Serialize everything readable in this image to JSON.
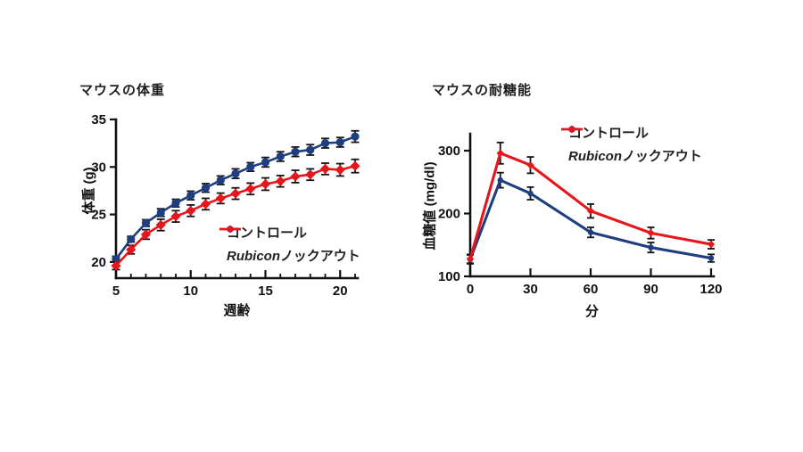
{
  "page": {
    "background": "#ffffff"
  },
  "colors": {
    "control": "#1f3e7f",
    "knockout": "#e5161c",
    "axis": "#111111",
    "error_bar": "#151515",
    "text": "#1f1f1f"
  },
  "legend": {
    "control": "コントロール",
    "knockout_italic": "Rubicon",
    "knockout_rest": "ノックアウト"
  },
  "chart_data": [
    {
      "type": "line",
      "title": "マウスの体重",
      "xlabel": "週齢",
      "ylabel": "体重 (g)",
      "x": [
        5,
        6,
        7,
        8,
        9,
        10,
        11,
        12,
        13,
        14,
        15,
        16,
        17,
        18,
        19,
        20,
        21
      ],
      "xticks": [
        5,
        10,
        15,
        20
      ],
      "xticks_minor": [
        6,
        7,
        8,
        9,
        11,
        12,
        13,
        14,
        16,
        17,
        18,
        19,
        21
      ],
      "yticks": [
        20,
        25,
        30,
        35
      ],
      "xlim": [
        5,
        21
      ],
      "ylim": [
        18.3,
        35
      ],
      "grid": false,
      "legend_position": "inside bottom-right",
      "series": [
        {
          "name": "コントロール",
          "color_key": "control",
          "marker": "circle",
          "values": [
            20.3,
            22.4,
            24.1,
            25.2,
            26.2,
            27.0,
            27.8,
            28.6,
            29.3,
            30.0,
            30.5,
            31.1,
            31.6,
            31.8,
            32.5,
            32.6,
            33.2
          ],
          "errors": [
            0.3,
            0.3,
            0.35,
            0.4,
            0.4,
            0.45,
            0.45,
            0.45,
            0.5,
            0.45,
            0.5,
            0.5,
            0.5,
            0.55,
            0.5,
            0.5,
            0.6
          ]
        },
        {
          "name": "Rubiconノックアウト",
          "color_key": "knockout",
          "marker": "diamond",
          "values": [
            19.6,
            21.3,
            22.9,
            23.9,
            24.8,
            25.4,
            26.1,
            26.7,
            27.2,
            27.7,
            28.2,
            28.5,
            29.0,
            29.2,
            29.8,
            29.7,
            30.1
          ],
          "errors": [
            0.4,
            0.45,
            0.5,
            0.6,
            0.6,
            0.6,
            0.6,
            0.55,
            0.6,
            0.6,
            0.65,
            0.6,
            0.65,
            0.6,
            0.6,
            0.65,
            0.7
          ]
        }
      ]
    },
    {
      "type": "line",
      "title": "マウスの耐糖能",
      "xlabel": "分",
      "ylabel": "血糖値 (mg/dl)",
      "x": [
        0,
        15,
        30,
        60,
        90,
        120
      ],
      "xticks": [
        0,
        30,
        60,
        90,
        120
      ],
      "xticks_minor": [],
      "yticks": [
        100,
        200,
        300
      ],
      "xlim": [
        0,
        120
      ],
      "ylim": [
        100,
        335
      ],
      "grid": false,
      "legend_position": "inside top-right",
      "series": [
        {
          "name": "コントロール",
          "color_key": "control",
          "marker": "circle",
          "values": [
            127,
            253,
            232,
            170,
            146,
            129
          ],
          "errors": [
            7,
            12,
            10,
            8,
            8,
            6
          ]
        },
        {
          "name": "Rubiconノックアウト",
          "color_key": "knockout",
          "marker": "diamond",
          "values": [
            128,
            296,
            277,
            204,
            169,
            151
          ],
          "errors": [
            7,
            17,
            13,
            11,
            9,
            7
          ]
        }
      ]
    }
  ]
}
